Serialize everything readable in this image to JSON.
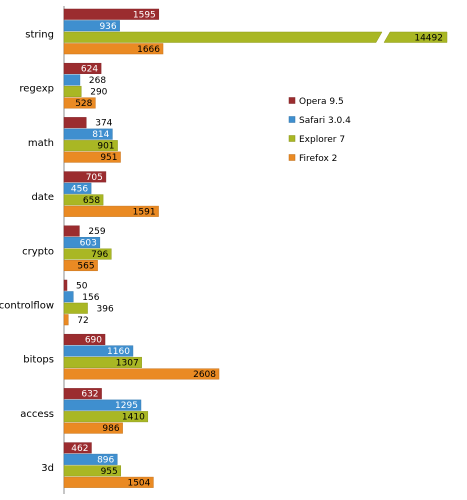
{
  "chart_data": {
    "type": "bar",
    "orientation": "horizontal",
    "categories": [
      "string",
      "regexp",
      "math",
      "date",
      "crypto",
      "controlflow",
      "bitops",
      "access",
      "3d"
    ],
    "series": [
      {
        "name": "Opera 9.5",
        "color": "#9b2c2f",
        "values": [
          1595,
          624,
          374,
          705,
          259,
          50,
          690,
          632,
          462
        ]
      },
      {
        "name": "Safari 3.0.4",
        "color": "#3f8fcf",
        "values": [
          936,
          268,
          814,
          456,
          603,
          156,
          1160,
          1295,
          896
        ]
      },
      {
        "name": "Explorer 7",
        "color": "#a9b724",
        "values": [
          14492,
          290,
          901,
          658,
          796,
          396,
          1307,
          1410,
          955
        ]
      },
      {
        "name": "Firefox 2",
        "color": "#ea8a23",
        "values": [
          1666,
          528,
          951,
          1591,
          565,
          72,
          2608,
          986,
          1504
        ]
      }
    ],
    "axis_break": {
      "series": "Explorer 7",
      "category": "string"
    },
    "legend_position": "right",
    "grid": false
  }
}
